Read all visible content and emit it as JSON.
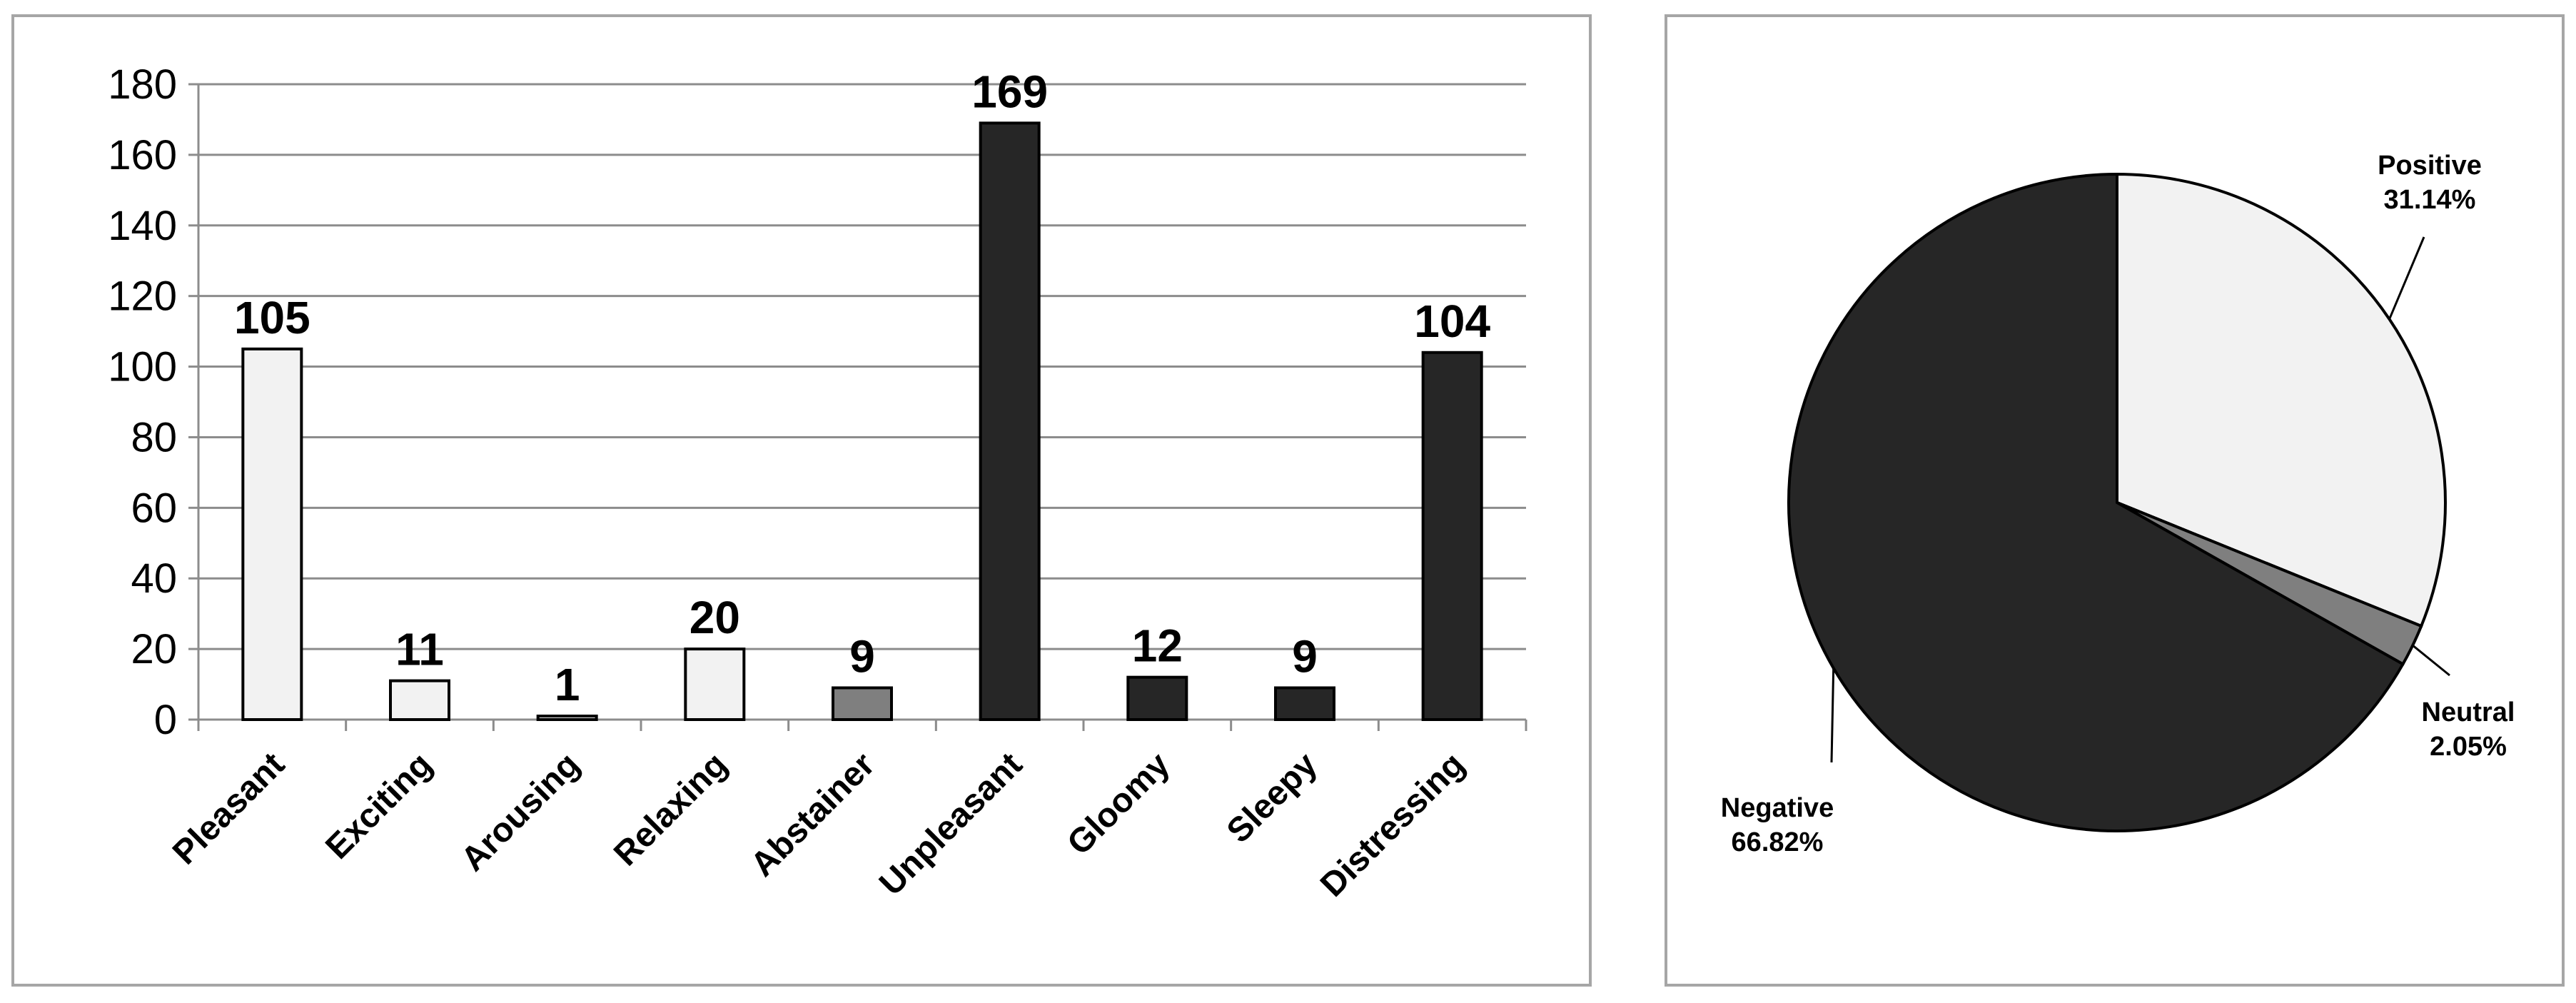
{
  "chart_data": [
    {
      "type": "bar",
      "categories": [
        "Pleasant",
        "Exciting",
        "Arousing",
        "Relaxing",
        "Abstainer",
        "Unpleasant",
        "Gloomy",
        "Sleepy",
        "Distressing"
      ],
      "values": [
        105,
        11,
        1,
        20,
        9,
        169,
        12,
        9,
        104
      ],
      "colors": [
        "#f2f2f2",
        "#f2f2f2",
        "#f2f2f2",
        "#f2f2f2",
        "#7f7f7f",
        "#262626",
        "#262626",
        "#262626",
        "#262626"
      ],
      "ylim": [
        0,
        180
      ],
      "yticks": [
        0,
        20,
        40,
        60,
        80,
        100,
        120,
        140,
        160,
        180
      ],
      "grid": true,
      "legend": "none"
    },
    {
      "type": "pie",
      "slices": [
        {
          "label": "Positive",
          "percent_label": "31.14%",
          "value": 31.14,
          "color": "#f2f2f2"
        },
        {
          "label": "Neutral",
          "percent_label": "2.05%",
          "value": 2.05,
          "color": "#7f7f7f"
        },
        {
          "label": "Negative",
          "percent_label": "66.82%",
          "value": 66.82,
          "color": "#262626"
        }
      ],
      "legend": "none"
    }
  ]
}
